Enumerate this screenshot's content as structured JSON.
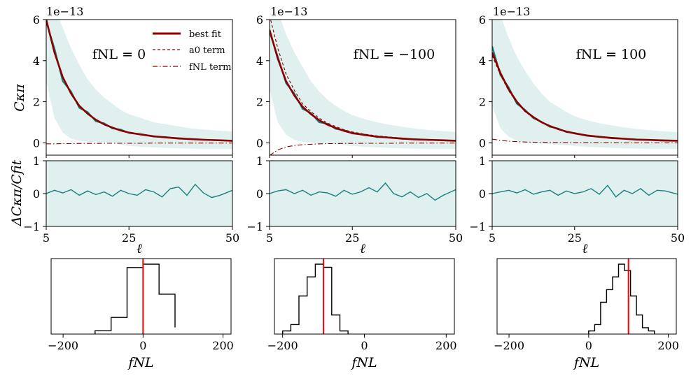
{
  "colors": {
    "best_fit": "#8b0000",
    "terms": "#8b0000",
    "measured": "#1b7f7f",
    "band": "#e0f0ef",
    "truth_line": "#ff0000",
    "hist": "#000000"
  },
  "ylabels": {
    "top": "Cκπ",
    "mid": "ΔCκπ/Cfit"
  },
  "xlabels": {
    "ell": "ℓ",
    "fnl": "fNL"
  },
  "offset_text": "1e−13",
  "legend": [
    {
      "label": "best fit",
      "style": "solid"
    },
    {
      "label": "a0 term",
      "style": "dashed"
    },
    {
      "label": "fNL term",
      "style": "dashdot"
    }
  ],
  "chart_data": [
    {
      "type": "line",
      "panel": "C_kappa_pi",
      "annotation": "fNL = 0",
      "ylabel": "Cκπ",
      "xlim": [
        5,
        50
      ],
      "ylim": [
        -0.6,
        6.0
      ],
      "y_scale_factor": "1e-13",
      "x_ticks": [
        5,
        25,
        50
      ],
      "y_ticks": [
        0,
        2,
        4,
        6
      ],
      "ell": [
        5,
        7,
        9,
        11,
        13,
        15,
        17,
        19,
        21,
        23,
        25,
        28,
        31,
        34,
        37,
        40,
        43,
        46,
        50
      ],
      "series": [
        {
          "name": "best fit",
          "values": [
            6.0,
            4.4,
            3.2,
            2.4,
            1.8,
            1.42,
            1.12,
            0.9,
            0.74,
            0.6,
            0.5,
            0.4,
            0.32,
            0.26,
            0.22,
            0.18,
            0.15,
            0.13,
            0.1
          ]
        },
        {
          "name": "a0 term",
          "values": [
            6.05,
            4.43,
            3.22,
            2.42,
            1.81,
            1.43,
            1.13,
            0.91,
            0.75,
            0.61,
            0.51,
            0.41,
            0.33,
            0.27,
            0.22,
            0.18,
            0.15,
            0.13,
            0.1
          ]
        },
        {
          "name": "fNL term",
          "values": [
            -0.05,
            -0.05,
            -0.04,
            -0.04,
            -0.03,
            -0.03,
            -0.03,
            -0.02,
            -0.02,
            -0.02,
            -0.02,
            -0.02,
            -0.01,
            -0.01,
            -0.01,
            -0.01,
            -0.01,
            -0.01,
            -0.01
          ]
        },
        {
          "values": [
            5.9,
            4.6,
            3.0,
            2.5,
            1.7,
            1.5,
            1.05,
            0.95,
            0.7,
            0.65,
            0.48,
            0.42,
            0.3,
            0.28,
            0.2,
            0.19,
            0.16,
            0.12,
            0.1
          ]
        }
      ],
      "band_upper": [
        7.5,
        6.6,
        5.6,
        4.6,
        3.8,
        3.1,
        2.6,
        2.2,
        1.9,
        1.6,
        1.4,
        1.2,
        1.0,
        0.9,
        0.8,
        0.7,
        0.65,
        0.6,
        0.55
      ],
      "band_lower": [
        3.0,
        1.2,
        0.5,
        0.2,
        0.1,
        0.05,
        0.03,
        0.02,
        0.0,
        -0.1,
        -0.15,
        -0.2,
        -0.22,
        -0.25,
        -0.27,
        -0.28,
        -0.3,
        -0.3,
        -0.3
      ]
    },
    {
      "type": "line",
      "panel": "residual",
      "ylabel": "ΔCκπ/Cfit",
      "xlabel": "ℓ",
      "xlim": [
        5,
        50
      ],
      "ylim": [
        -1,
        1
      ],
      "x_ticks": [
        5,
        25,
        50
      ],
      "y_ticks": [
        -1,
        0,
        1
      ],
      "ell": [
        5,
        7,
        9,
        11,
        13,
        15,
        17,
        19,
        21,
        23,
        25,
        27,
        29,
        31,
        33,
        35,
        37,
        39,
        41,
        43,
        45,
        47,
        50
      ],
      "values": [
        0.0,
        0.1,
        0.02,
        0.12,
        -0.05,
        0.08,
        -0.03,
        0.05,
        -0.08,
        0.1,
        0.0,
        -0.05,
        0.12,
        0.05,
        -0.1,
        0.15,
        0.2,
        -0.05,
        0.28,
        0.02,
        -0.12,
        -0.05,
        0.1
      ],
      "band": [
        -1,
        1
      ]
    },
    {
      "type": "histogram",
      "panel": "fNL posterior",
      "xlabel": "fNL",
      "xlim": [
        -230,
        220
      ],
      "x_ticks": [
        -200,
        0,
        200
      ],
      "truth": 0,
      "bin_edges": [
        -120,
        -80,
        -40,
        0,
        40,
        80
      ],
      "counts": [
        1,
        5,
        20,
        21,
        12,
        2
      ]
    },
    {
      "type": "line",
      "panel": "C_kappa_pi",
      "annotation": "fNL = −100",
      "xlim": [
        5,
        50
      ],
      "ylim": [
        -0.6,
        6.0
      ],
      "x_ticks": [
        5,
        25,
        50
      ],
      "y_ticks": [
        0,
        2,
        4,
        6
      ],
      "ell": [
        5,
        7,
        9,
        11,
        13,
        15,
        17,
        19,
        21,
        23,
        25,
        28,
        31,
        34,
        37,
        40,
        43,
        46,
        50
      ],
      "series": [
        {
          "name": "best fit",
          "values": [
            5.5,
            4.1,
            3.0,
            2.3,
            1.75,
            1.4,
            1.1,
            0.88,
            0.72,
            0.58,
            0.48,
            0.38,
            0.3,
            0.25,
            0.21,
            0.17,
            0.15,
            0.13,
            0.1
          ]
        },
        {
          "name": "a0 term",
          "values": [
            6.2,
            4.6,
            3.35,
            2.55,
            1.9,
            1.52,
            1.2,
            0.96,
            0.79,
            0.64,
            0.53,
            0.42,
            0.34,
            0.28,
            0.23,
            0.19,
            0.16,
            0.14,
            0.11
          ]
        },
        {
          "name": "fNL term",
          "values": [
            -0.62,
            -0.34,
            -0.2,
            -0.13,
            -0.09,
            -0.07,
            -0.05,
            -0.04,
            -0.04,
            -0.03,
            -0.03,
            -0.02,
            -0.02,
            -0.02,
            -0.01,
            -0.01,
            -0.01,
            -0.01,
            -0.01
          ]
        },
        {
          "values": [
            5.4,
            4.2,
            2.9,
            2.4,
            1.65,
            1.45,
            1.0,
            0.93,
            0.68,
            0.62,
            0.45,
            0.4,
            0.28,
            0.26,
            0.19,
            0.18,
            0.15,
            0.12,
            0.1
          ]
        }
      ],
      "band_upper": [
        7.5,
        6.4,
        5.3,
        4.4,
        3.7,
        3.0,
        2.5,
        2.1,
        1.8,
        1.55,
        1.35,
        1.15,
        1.0,
        0.88,
        0.78,
        0.7,
        0.63,
        0.58,
        0.53
      ],
      "band_lower": [
        2.6,
        1.0,
        0.4,
        0.15,
        0.05,
        0.0,
        -0.02,
        -0.05,
        -0.08,
        -0.12,
        -0.15,
        -0.2,
        -0.22,
        -0.25,
        -0.27,
        -0.28,
        -0.3,
        -0.3,
        -0.3
      ]
    },
    {
      "type": "line",
      "panel": "residual",
      "xlabel": "ℓ",
      "xlim": [
        5,
        50
      ],
      "ylim": [
        -1,
        1
      ],
      "x_ticks": [
        5,
        25,
        50
      ],
      "y_ticks": [
        -1,
        0,
        1
      ],
      "ell": [
        5,
        7,
        9,
        11,
        13,
        15,
        17,
        19,
        21,
        23,
        25,
        27,
        29,
        31,
        33,
        35,
        37,
        39,
        41,
        43,
        45,
        47,
        50
      ],
      "values": [
        0.0,
        0.08,
        0.12,
        0.0,
        0.1,
        -0.05,
        0.05,
        0.02,
        -0.08,
        0.1,
        -0.02,
        0.05,
        0.18,
        0.05,
        0.32,
        0.0,
        -0.1,
        0.05,
        -0.12,
        0.0,
        -0.2,
        -0.05,
        0.12
      ],
      "band": [
        -1,
        1
      ]
    },
    {
      "type": "histogram",
      "panel": "fNL posterior",
      "xlabel": "fNL",
      "xlim": [
        -220,
        220
      ],
      "x_ticks": [
        -200,
        0,
        200
      ],
      "truth": -100,
      "bin_edges": [
        -200,
        -180,
        -160,
        -140,
        -120,
        -100,
        -80,
        -60,
        -40
      ],
      "counts": [
        1,
        3,
        12,
        18,
        22,
        21,
        6,
        1
      ]
    },
    {
      "type": "line",
      "panel": "C_kappa_pi",
      "annotation": "fNL = 100",
      "xlim": [
        5,
        50
      ],
      "ylim": [
        -0.6,
        6.0
      ],
      "x_ticks": [
        5,
        25,
        50
      ],
      "y_ticks": [
        0,
        2,
        4,
        6
      ],
      "ell": [
        5,
        7,
        9,
        11,
        13,
        15,
        17,
        19,
        21,
        23,
        25,
        28,
        31,
        34,
        37,
        40,
        43,
        46,
        50
      ],
      "series": [
        {
          "name": "best fit",
          "values": [
            4.4,
            3.4,
            2.6,
            2.0,
            1.55,
            1.25,
            1.0,
            0.82,
            0.67,
            0.55,
            0.46,
            0.36,
            0.29,
            0.24,
            0.2,
            0.16,
            0.14,
            0.12,
            0.1
          ]
        },
        {
          "name": "a0 term",
          "values": [
            4.25,
            3.3,
            2.53,
            1.95,
            1.51,
            1.22,
            0.98,
            0.8,
            0.65,
            0.54,
            0.45,
            0.35,
            0.28,
            0.23,
            0.19,
            0.16,
            0.14,
            0.12,
            0.1
          ]
        },
        {
          "name": "fNL term",
          "values": [
            0.18,
            0.12,
            0.08,
            0.06,
            0.04,
            0.03,
            0.03,
            0.02,
            0.02,
            0.01,
            0.01,
            0.01,
            0.01,
            0.01,
            0.0,
            0.0,
            0.0,
            0.0,
            0.0
          ]
        },
        {
          "values": [
            4.7,
            3.3,
            2.7,
            1.9,
            1.6,
            1.2,
            1.02,
            0.78,
            0.7,
            0.52,
            0.48,
            0.34,
            0.3,
            0.22,
            0.2,
            0.15,
            0.14,
            0.11,
            0.1
          ]
        }
      ],
      "band_upper": [
        7.5,
        6.2,
        5.1,
        4.2,
        3.5,
        2.9,
        2.4,
        2.0,
        1.75,
        1.5,
        1.3,
        1.1,
        0.95,
        0.85,
        0.75,
        0.68,
        0.62,
        0.57,
        0.52
      ],
      "band_lower": [
        1.8,
        0.7,
        0.3,
        0.1,
        0.0,
        -0.02,
        -0.05,
        -0.07,
        -0.1,
        -0.12,
        -0.15,
        -0.2,
        -0.22,
        -0.25,
        -0.27,
        -0.28,
        -0.3,
        -0.3,
        -0.3
      ]
    },
    {
      "type": "line",
      "panel": "residual",
      "xlabel": "ℓ",
      "xlim": [
        5,
        50
      ],
      "ylim": [
        -1,
        1
      ],
      "x_ticks": [
        5,
        25,
        50
      ],
      "y_ticks": [
        -1,
        0,
        1
      ],
      "ell": [
        5,
        7,
        9,
        11,
        13,
        15,
        17,
        19,
        21,
        23,
        25,
        27,
        29,
        31,
        33,
        35,
        37,
        39,
        41,
        43,
        45,
        47,
        50
      ],
      "values": [
        0.0,
        0.05,
        0.1,
        0.02,
        0.12,
        -0.02,
        0.05,
        0.1,
        -0.05,
        0.08,
        0.0,
        0.05,
        0.15,
        -0.02,
        0.25,
        -0.1,
        0.1,
        0.0,
        0.15,
        -0.05,
        0.1,
        0.08,
        -0.02
      ],
      "band": [
        -1,
        1
      ]
    },
    {
      "type": "histogram",
      "panel": "fNL posterior",
      "xlabel": "fNL",
      "xlim": [
        -230,
        220
      ],
      "x_ticks": [
        -200,
        0,
        200
      ],
      "truth": 100,
      "bin_edges": [
        0,
        15,
        30,
        45,
        60,
        75,
        90,
        105,
        120,
        135,
        150,
        165
      ],
      "counts": [
        1,
        3,
        10,
        14,
        18,
        22,
        20,
        12,
        6,
        2,
        1
      ]
    }
  ]
}
